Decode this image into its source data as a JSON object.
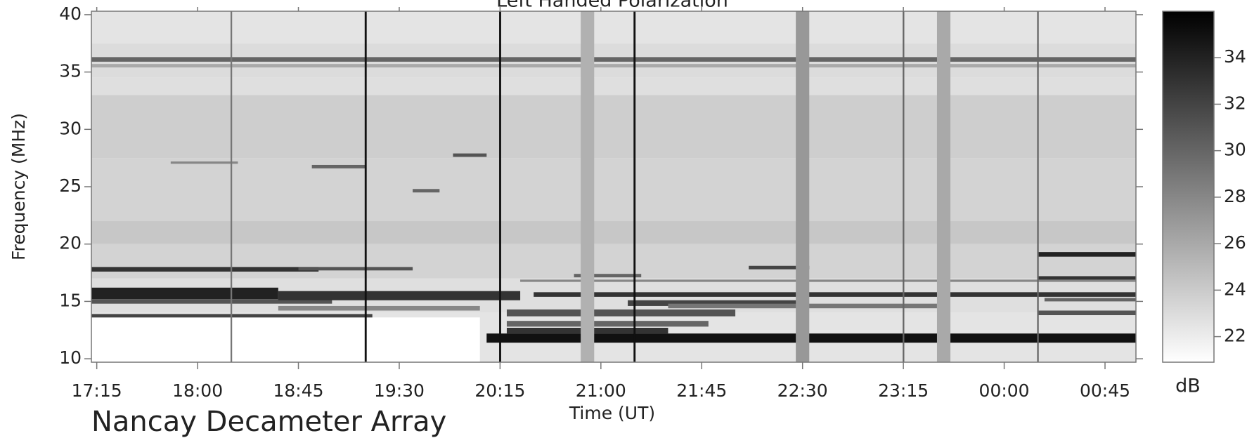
{
  "chart_data": {
    "type": "spectrogram",
    "title": "Left Handed Polarization",
    "xlabel": "Time (UT)",
    "ylabel": "Frequency (MHz)",
    "footer": "Nancay Decameter Array",
    "colorbar_label": "dB",
    "xlim": [
      17.21,
      24.98
    ],
    "xticks": [
      {
        "value": 17.25,
        "label": "17:15"
      },
      {
        "value": 18.0,
        "label": "18:00"
      },
      {
        "value": 18.75,
        "label": "18:45"
      },
      {
        "value": 19.5,
        "label": "19:30"
      },
      {
        "value": 20.25,
        "label": "20:15"
      },
      {
        "value": 21.0,
        "label": "21:00"
      },
      {
        "value": 21.75,
        "label": "21:45"
      },
      {
        "value": 22.5,
        "label": "22:30"
      },
      {
        "value": 23.25,
        "label": "23:15"
      },
      {
        "value": 24.0,
        "label": "00:00"
      },
      {
        "value": 24.75,
        "label": "00:45"
      }
    ],
    "ylim": [
      9.7,
      40.3
    ],
    "yticks": [
      10,
      15,
      20,
      25,
      30,
      35,
      40
    ],
    "clim": [
      20.9,
      36
    ],
    "cticks": [
      22,
      24,
      26,
      28,
      30,
      32,
      34
    ],
    "colormap": [
      "#ffffff",
      "#000000"
    ],
    "background": {
      "freq_edges": [
        9.7,
        14,
        17,
        20,
        22,
        27.5,
        33,
        34.5,
        37.5,
        40.3
      ],
      "values": [
        22.5,
        22.8,
        23.5,
        24.2,
        23.5,
        23.8,
        22.8,
        23,
        22.5
      ]
    },
    "patches": [
      [
        17.21,
        20.1,
        9.7,
        13.6,
        20.9
      ],
      [
        17.21,
        18.6,
        15.2,
        16.2,
        34
      ],
      [
        17.21,
        19.0,
        14.8,
        15.2,
        31
      ],
      [
        18.6,
        20.4,
        15.1,
        15.9,
        33
      ],
      [
        17.21,
        18.9,
        17.6,
        18.0,
        33
      ],
      [
        18.75,
        19.6,
        17.7,
        18.0,
        31
      ],
      [
        17.21,
        19.3,
        13.6,
        13.9,
        32
      ],
      [
        18.6,
        20.1,
        14.2,
        14.6,
        28
      ],
      [
        20.15,
        24.98,
        11.4,
        12.2,
        35
      ],
      [
        20.3,
        21.5,
        12.2,
        12.7,
        33
      ],
      [
        20.3,
        22.0,
        13.7,
        14.3,
        31
      ],
      [
        20.3,
        21.8,
        12.8,
        13.3,
        30
      ],
      [
        21.2,
        22.5,
        14.6,
        15.1,
        32
      ],
      [
        20.5,
        24.98,
        15.4,
        15.8,
        33
      ],
      [
        21.5,
        23.5,
        14.4,
        14.8,
        29
      ],
      [
        24.25,
        24.98,
        18.9,
        19.3,
        34
      ],
      [
        24.25,
        24.98,
        16.8,
        17.2,
        33
      ],
      [
        24.25,
        24.98,
        13.8,
        14.2,
        31
      ],
      [
        24.3,
        24.98,
        15.0,
        15.3,
        30
      ],
      [
        22.1,
        22.55,
        17.8,
        18.1,
        32
      ],
      [
        17.21,
        24.98,
        35.9,
        36.3,
        30
      ],
      [
        17.21,
        24.98,
        35.4,
        35.7,
        26
      ],
      [
        18.85,
        19.25,
        26.6,
        26.9,
        30
      ],
      [
        19.9,
        20.15,
        27.6,
        27.9,
        31
      ],
      [
        19.6,
        19.8,
        24.5,
        24.8,
        30
      ],
      [
        17.8,
        18.3,
        27.0,
        27.2,
        28
      ],
      [
        20.4,
        24.98,
        16.7,
        16.9,
        28
      ],
      [
        20.8,
        21.3,
        17.1,
        17.4,
        30
      ],
      [
        22.45,
        22.55,
        9.7,
        40.3,
        27
      ],
      [
        23.5,
        23.6,
        9.7,
        40.3,
        26
      ],
      [
        20.85,
        20.95,
        9.7,
        40.3,
        25.5
      ],
      [
        18.245,
        18.257,
        9.7,
        40.3,
        29
      ],
      [
        19.243,
        19.258,
        9.7,
        40.3,
        35
      ],
      [
        20.243,
        20.258,
        9.7,
        40.3,
        35
      ],
      [
        21.243,
        21.258,
        9.7,
        40.3,
        35
      ],
      [
        23.245,
        23.257,
        9.7,
        40.3,
        30
      ],
      [
        24.245,
        24.257,
        9.7,
        40.3,
        30
      ]
    ]
  }
}
